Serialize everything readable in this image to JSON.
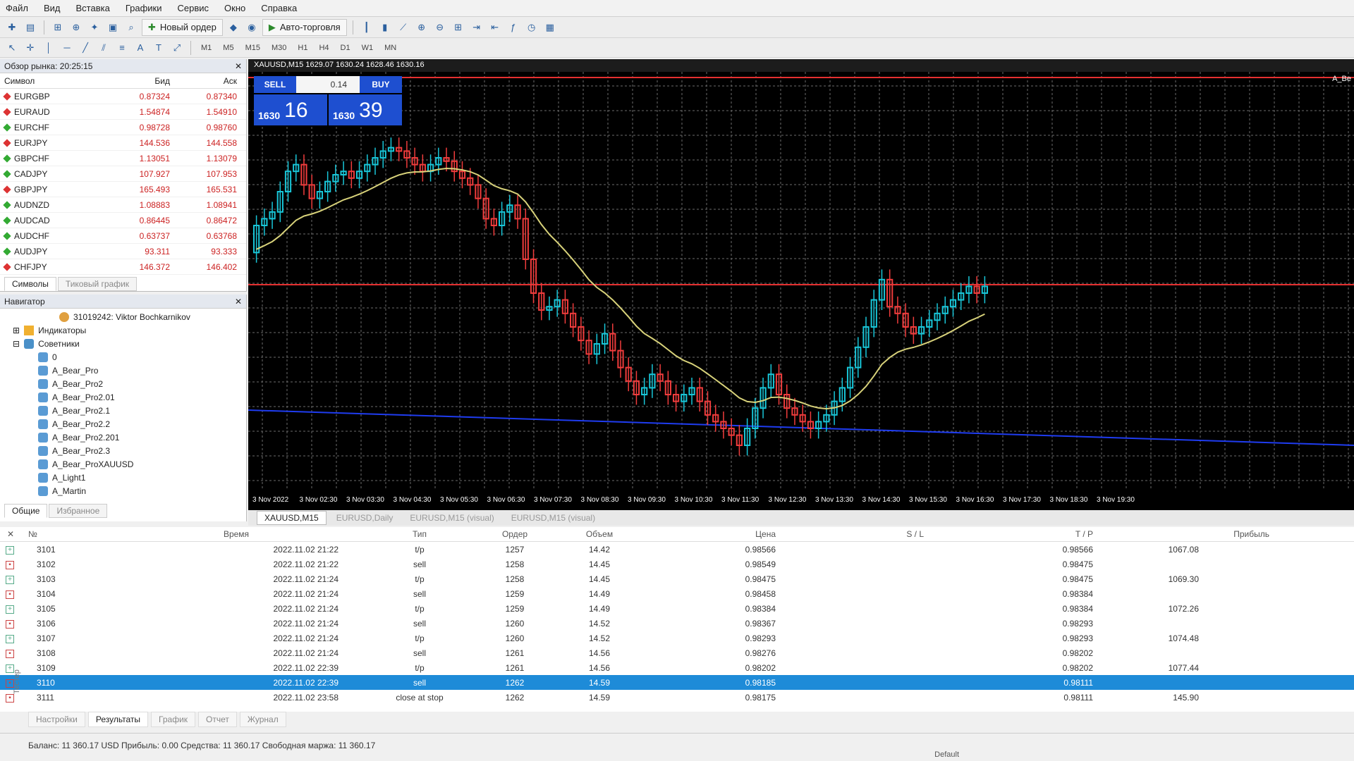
{
  "menu": [
    "Файл",
    "Вид",
    "Вставка",
    "Графики",
    "Сервис",
    "Окно",
    "Справка"
  ],
  "toolbar": {
    "new_order": "Новый ордер",
    "auto_trading": "Авто-торговля",
    "timeframes": [
      "M1",
      "M5",
      "M15",
      "M30",
      "H1",
      "H4",
      "D1",
      "W1",
      "MN"
    ]
  },
  "market_watch": {
    "title": "Обзор рынка: 20:25:15",
    "headers": {
      "symbol": "Символ",
      "bid": "Бид",
      "ask": "Аск"
    },
    "rows": [
      {
        "symbol": "EURGBP",
        "bid": "0.87324",
        "ask": "0.87340",
        "color": "#d33"
      },
      {
        "symbol": "EURAUD",
        "bid": "1.54874",
        "ask": "1.54910",
        "color": "#d33"
      },
      {
        "symbol": "EURCHF",
        "bid": "0.98728",
        "ask": "0.98760",
        "color": "#3a3"
      },
      {
        "symbol": "EURJPY",
        "bid": "144.536",
        "ask": "144.558",
        "color": "#d33"
      },
      {
        "symbol": "GBPCHF",
        "bid": "1.13051",
        "ask": "1.13079",
        "color": "#3a3"
      },
      {
        "symbol": "CADJPY",
        "bid": "107.927",
        "ask": "107.953",
        "color": "#3a3"
      },
      {
        "symbol": "GBPJPY",
        "bid": "165.493",
        "ask": "165.531",
        "color": "#d33"
      },
      {
        "symbol": "AUDNZD",
        "bid": "1.08883",
        "ask": "1.08941",
        "color": "#3a3"
      },
      {
        "symbol": "AUDCAD",
        "bid": "0.86445",
        "ask": "0.86472",
        "color": "#3a3"
      },
      {
        "symbol": "AUDCHF",
        "bid": "0.63737",
        "ask": "0.63768",
        "color": "#3a3"
      },
      {
        "symbol": "AUDJPY",
        "bid": "93.311",
        "ask": "93.333",
        "color": "#3a3"
      },
      {
        "symbol": "CHFJPY",
        "bid": "146.372",
        "ask": "146.402",
        "color": "#d33"
      }
    ],
    "tabs": [
      "Символы",
      "Тиковый график"
    ]
  },
  "navigator": {
    "title": "Навигатор",
    "account": "31019242: Viktor Bochkarnikov",
    "indicators": "Индикаторы",
    "experts": "Советники",
    "items": [
      "0",
      "A_Bear_Pro",
      "A_Bear_Pro2",
      "A_Bear_Pro2.01",
      "A_Bear_Pro2.1",
      "A_Bear_Pro2.2",
      "A_Bear_Pro2.201",
      "A_Bear_Pro2.3",
      "A_Bear_ProXAUUSD",
      "A_Light1",
      "A_Martin"
    ],
    "tabs": [
      "Общие",
      "Избранное"
    ]
  },
  "chart": {
    "title": "XAUUSD,M15  1629.07 1630.24 1628.46 1630.16",
    "one_click": {
      "sell": "SELL",
      "buy": "BUY",
      "volume": "0.14",
      "sell_price_small": "1630",
      "sell_price_big": "16",
      "buy_price_small": "1630",
      "buy_price_big": "39"
    },
    "corner_label": "A_Be",
    "time_labels": [
      "3 Nov 2022",
      "3 Nov 02:30",
      "3 Nov 03:30",
      "3 Nov 04:30",
      "3 Nov 05:30",
      "3 Nov 06:30",
      "3 Nov 07:30",
      "3 Nov 08:30",
      "3 Nov 09:30",
      "3 Nov 10:30",
      "3 Nov 11:30",
      "3 Nov 12:30",
      "3 Nov 13:30",
      "3 Nov 14:30",
      "3 Nov 15:30",
      "3 Nov 16:30",
      "3 Nov 17:30",
      "3 Nov 18:30",
      "3 Nov 19:30"
    ],
    "colors": {
      "bull": "#18c6d8",
      "bear": "#f03c3c",
      "ma": "#d8d27a",
      "hline": "#e53030",
      "trend": "#1f3cf0",
      "grid": "#6b6b6b"
    }
  },
  "chart_data": {
    "type": "candlestick",
    "title": "XAUUSD,M15",
    "time_labels": [
      "3 Nov 2022",
      "3 Nov 02:30",
      "3 Nov 03:30",
      "3 Nov 04:30",
      "3 Nov 05:30",
      "3 Nov 06:30",
      "3 Nov 07:30",
      "3 Nov 08:30",
      "3 Nov 09:30",
      "3 Nov 10:30",
      "3 Nov 11:30",
      "3 Nov 12:30",
      "3 Nov 13:30",
      "3 Nov 14:30",
      "3 Nov 15:30",
      "3 Nov 16:30",
      "3 Nov 17:30",
      "3 Nov 18:30",
      "3 Nov 19:30"
    ],
    "closes": [
      0.7,
      0.72,
      0.74,
      0.8,
      0.86,
      0.88,
      0.82,
      0.78,
      0.8,
      0.83,
      0.85,
      0.86,
      0.84,
      0.86,
      0.88,
      0.9,
      0.92,
      0.93,
      0.92,
      0.9,
      0.88,
      0.86,
      0.88,
      0.9,
      0.89,
      0.86,
      0.84,
      0.82,
      0.78,
      0.72,
      0.7,
      0.74,
      0.76,
      0.72,
      0.6,
      0.5,
      0.45,
      0.46,
      0.48,
      0.44,
      0.4,
      0.36,
      0.32,
      0.35,
      0.38,
      0.33,
      0.28,
      0.24,
      0.2,
      0.22,
      0.26,
      0.24,
      0.2,
      0.18,
      0.2,
      0.22,
      0.18,
      0.14,
      0.12,
      0.1,
      0.08,
      0.05,
      0.1,
      0.16,
      0.22,
      0.26,
      0.2,
      0.16,
      0.14,
      0.12,
      0.1,
      0.12,
      0.14,
      0.18,
      0.22,
      0.28,
      0.34,
      0.4,
      0.48,
      0.54,
      0.46,
      0.44,
      0.4,
      0.38,
      0.4,
      0.42,
      0.44,
      0.46,
      0.48,
      0.5,
      0.52,
      0.5,
      0.52
    ],
    "ma_start": 0.62
  },
  "orders": {
    "headers": [
      "№",
      "Время",
      "Тип",
      "Ордер",
      "Объем",
      "Цена",
      "S / L",
      "T / P",
      "Прибыль"
    ],
    "rows": [
      {
        "n": "3101",
        "time": "2022.11.02 21:22",
        "type": "t/p",
        "order": "1257",
        "vol": "14.42",
        "price": "0.98566",
        "sl": "",
        "tp": "0.98566",
        "profit": "1067.08"
      },
      {
        "n": "3102",
        "time": "2022.11.02 21:22",
        "type": "sell",
        "order": "1258",
        "vol": "14.45",
        "price": "0.98549",
        "sl": "",
        "tp": "0.98475",
        "profit": ""
      },
      {
        "n": "3103",
        "time": "2022.11.02 21:24",
        "type": "t/p",
        "order": "1258",
        "vol": "14.45",
        "price": "0.98475",
        "sl": "",
        "tp": "0.98475",
        "profit": "1069.30"
      },
      {
        "n": "3104",
        "time": "2022.11.02 21:24",
        "type": "sell",
        "order": "1259",
        "vol": "14.49",
        "price": "0.98458",
        "sl": "",
        "tp": "0.98384",
        "profit": ""
      },
      {
        "n": "3105",
        "time": "2022.11.02 21:24",
        "type": "t/p",
        "order": "1259",
        "vol": "14.49",
        "price": "0.98384",
        "sl": "",
        "tp": "0.98384",
        "profit": "1072.26"
      },
      {
        "n": "3106",
        "time": "2022.11.02 21:24",
        "type": "sell",
        "order": "1260",
        "vol": "14.52",
        "price": "0.98367",
        "sl": "",
        "tp": "0.98293",
        "profit": ""
      },
      {
        "n": "3107",
        "time": "2022.11.02 21:24",
        "type": "t/p",
        "order": "1260",
        "vol": "14.52",
        "price": "0.98293",
        "sl": "",
        "tp": "0.98293",
        "profit": "1074.48"
      },
      {
        "n": "3108",
        "time": "2022.11.02 21:24",
        "type": "sell",
        "order": "1261",
        "vol": "14.56",
        "price": "0.98276",
        "sl": "",
        "tp": "0.98202",
        "profit": ""
      },
      {
        "n": "3109",
        "time": "2022.11.02 22:39",
        "type": "t/p",
        "order": "1261",
        "vol": "14.56",
        "price": "0.98202",
        "sl": "",
        "tp": "0.98202",
        "profit": "1077.44"
      },
      {
        "n": "3110",
        "time": "2022.11.02 22:39",
        "type": "sell",
        "order": "1262",
        "vol": "14.59",
        "price": "0.98185",
        "sl": "",
        "tp": "0.98111",
        "profit": "",
        "selected": true
      },
      {
        "n": "3111",
        "time": "2022.11.02 23:58",
        "type": "close at stop",
        "order": "1262",
        "vol": "14.59",
        "price": "0.98175",
        "sl": "",
        "tp": "0.98111",
        "profit": "145.90"
      }
    ]
  },
  "tester_tabs": [
    "Настройки",
    "Результаты",
    "График",
    "Отчет",
    "Журнал"
  ],
  "side_label": "Тестер",
  "status": {
    "text": "Баланс: 11 360.17 USD  Прибыль: 0.00  Средства: 11 360.17  Свободная маржа: 11 360.17",
    "profile": "Default"
  }
}
